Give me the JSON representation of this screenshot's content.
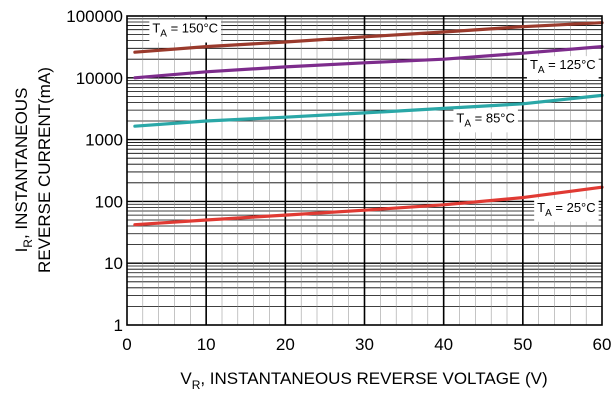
{
  "chart_data": {
    "type": "line",
    "title": "",
    "xlabel": {
      "main": "V",
      "sub": "R",
      "rest": ", INSTANTANEOUS REVERSE VOLTAGE (V)"
    },
    "ylabel": {
      "line1": {
        "main": "I",
        "sub": "R",
        "rest": ", INSTANTANEOUS"
      },
      "line2": "REVERSE CURRENT(mA)"
    },
    "xlim": [
      0,
      60
    ],
    "ylim": [
      1,
      100000
    ],
    "y_scale": "log",
    "grid": true,
    "x_ticks": [
      0,
      10,
      20,
      30,
      40,
      50,
      60
    ],
    "x_tick_labels": [
      "0",
      "10",
      "20",
      "30",
      "40",
      "50",
      "60"
    ],
    "y_ticks": [
      1,
      10,
      100,
      1000,
      10000,
      100000
    ],
    "y_tick_labels": [
      "1",
      "10",
      "100",
      "1000",
      "10000",
      "100000"
    ],
    "series": [
      {
        "label": {
          "main": "T",
          "sub": "A",
          "rest": " = 150°C"
        },
        "color": "#9a3a2c",
        "x": [
          1,
          10,
          20,
          30,
          40,
          50,
          60
        ],
        "y": [
          26000,
          32000,
          38000,
          46000,
          55000,
          67000,
          78000
        ]
      },
      {
        "label": {
          "main": "T",
          "sub": "A",
          "rest": " = 125°C"
        },
        "color": "#7d2c8c",
        "x": [
          1,
          10,
          20,
          30,
          40,
          50,
          60
        ],
        "y": [
          10000,
          12500,
          15000,
          17500,
          20000,
          25000,
          32000
        ]
      },
      {
        "label": {
          "main": "T",
          "sub": "A",
          "rest": " = 85°C"
        },
        "color": "#2aa7a7",
        "x": [
          1,
          10,
          20,
          30,
          40,
          50,
          60
        ],
        "y": [
          1650,
          2000,
          2300,
          2700,
          3200,
          3800,
          5200
        ]
      },
      {
        "label": {
          "main": "T",
          "sub": "A",
          "rest": " = 25°C"
        },
        "color": "#e03a33",
        "x": [
          1,
          10,
          20,
          30,
          40,
          50,
          60
        ],
        "y": [
          42,
          50,
          60,
          72,
          88,
          115,
          170
        ]
      }
    ]
  }
}
